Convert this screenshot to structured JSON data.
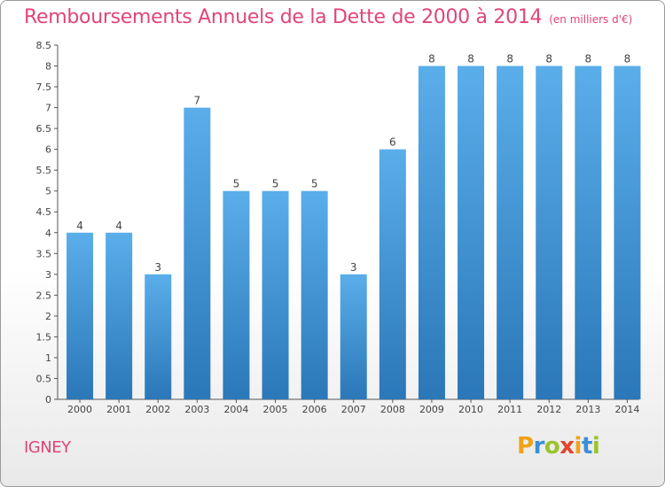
{
  "chart_data": {
    "type": "bar",
    "title": "Remboursements Annuels de la Dette de 2000 à 2014",
    "subtitle": "(en milliers d'€)",
    "categories": [
      "2000",
      "2001",
      "2002",
      "2003",
      "2004",
      "2005",
      "2006",
      "2007",
      "2008",
      "2009",
      "2010",
      "2011",
      "2012",
      "2013",
      "2014"
    ],
    "values": [
      4,
      4,
      3,
      7,
      5,
      5,
      5,
      3,
      6,
      8,
      8,
      8,
      8,
      8,
      8
    ],
    "data_labels": [
      "4",
      "4",
      "3",
      "7",
      "5",
      "5",
      "5",
      "3",
      "6",
      "8",
      "8",
      "8",
      "8",
      "8",
      "8"
    ],
    "yticks": [
      "0",
      "0.5",
      "1",
      "1.5",
      "2",
      "2.5",
      "3",
      "3.5",
      "4",
      "4.5",
      "5",
      "5.5",
      "6",
      "6.5",
      "7",
      "7.5",
      "8",
      "8.5"
    ],
    "ylim": [
      0,
      8.5
    ],
    "grid": false,
    "bar_color": "#3f93d8",
    "xlabel": "",
    "ylabel": ""
  },
  "footer": {
    "location": "IGNEY",
    "brand_letters": [
      "P",
      "r",
      "o",
      "x",
      "i",
      "t",
      "i"
    ],
    "brand_colors": [
      "#f0a219",
      "#3a8fd6",
      "#9bc42b",
      "#e4452c",
      "#f0a219",
      "#3a8fd6",
      "#9bc42b"
    ]
  }
}
